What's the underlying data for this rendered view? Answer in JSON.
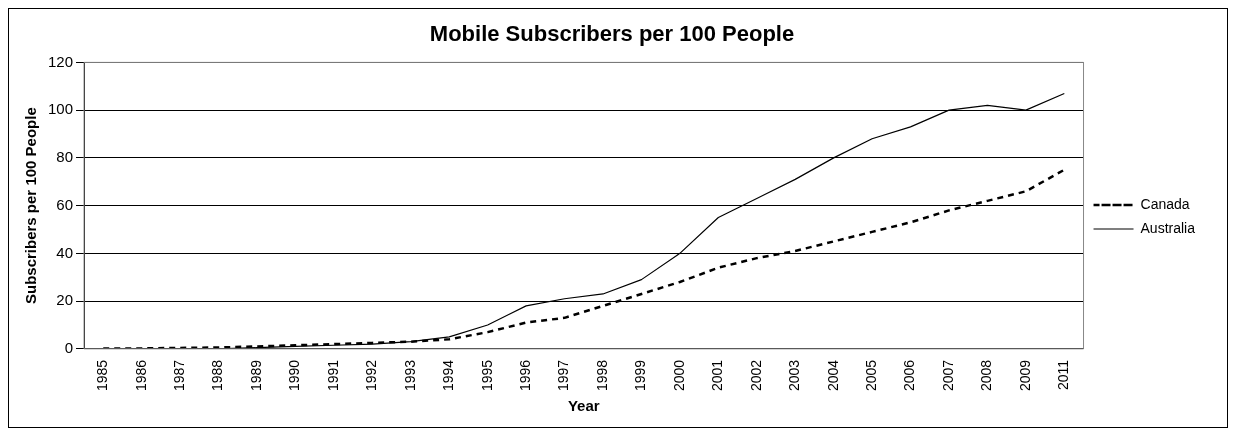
{
  "chart_data": {
    "type": "line",
    "title": "Mobile Subscribers per 100 People",
    "xlabel": "Year",
    "ylabel": "Subscribers per 100 People",
    "categories": [
      "1985",
      "1986",
      "1987",
      "1988",
      "1989",
      "1990",
      "1991",
      "1992",
      "1993",
      "1994",
      "1995",
      "1996",
      "1997",
      "1998",
      "1999",
      "2000",
      "2001",
      "2002",
      "2003",
      "2004",
      "2005",
      "2006",
      "2007",
      "2008",
      "2009",
      "2011"
    ],
    "series": [
      {
        "name": "Canada",
        "color": "#000000",
        "line_style": "dashed",
        "values": [
          0.1,
          0.2,
          0.4,
          0.6,
          1,
          1.5,
          2,
          2.5,
          3,
          4,
          7,
          11,
          13,
          18,
          23,
          28,
          34,
          38,
          41,
          45,
          49,
          53,
          58,
          62,
          66,
          75
        ]
      },
      {
        "name": "Australia",
        "color": "#000000",
        "line_style": "solid",
        "values": [
          0,
          0,
          0,
          0,
          0.5,
          1,
          1.5,
          2,
          3,
          5,
          10,
          18,
          21,
          23,
          29,
          40,
          55,
          63,
          71,
          80,
          88,
          93,
          100,
          102,
          100,
          107
        ]
      }
    ],
    "ylim": [
      0,
      120
    ],
    "yticks": [
      0,
      20,
      40,
      60,
      80,
      100,
      120
    ],
    "grid": "y",
    "legend": "right",
    "marker": "none"
  }
}
